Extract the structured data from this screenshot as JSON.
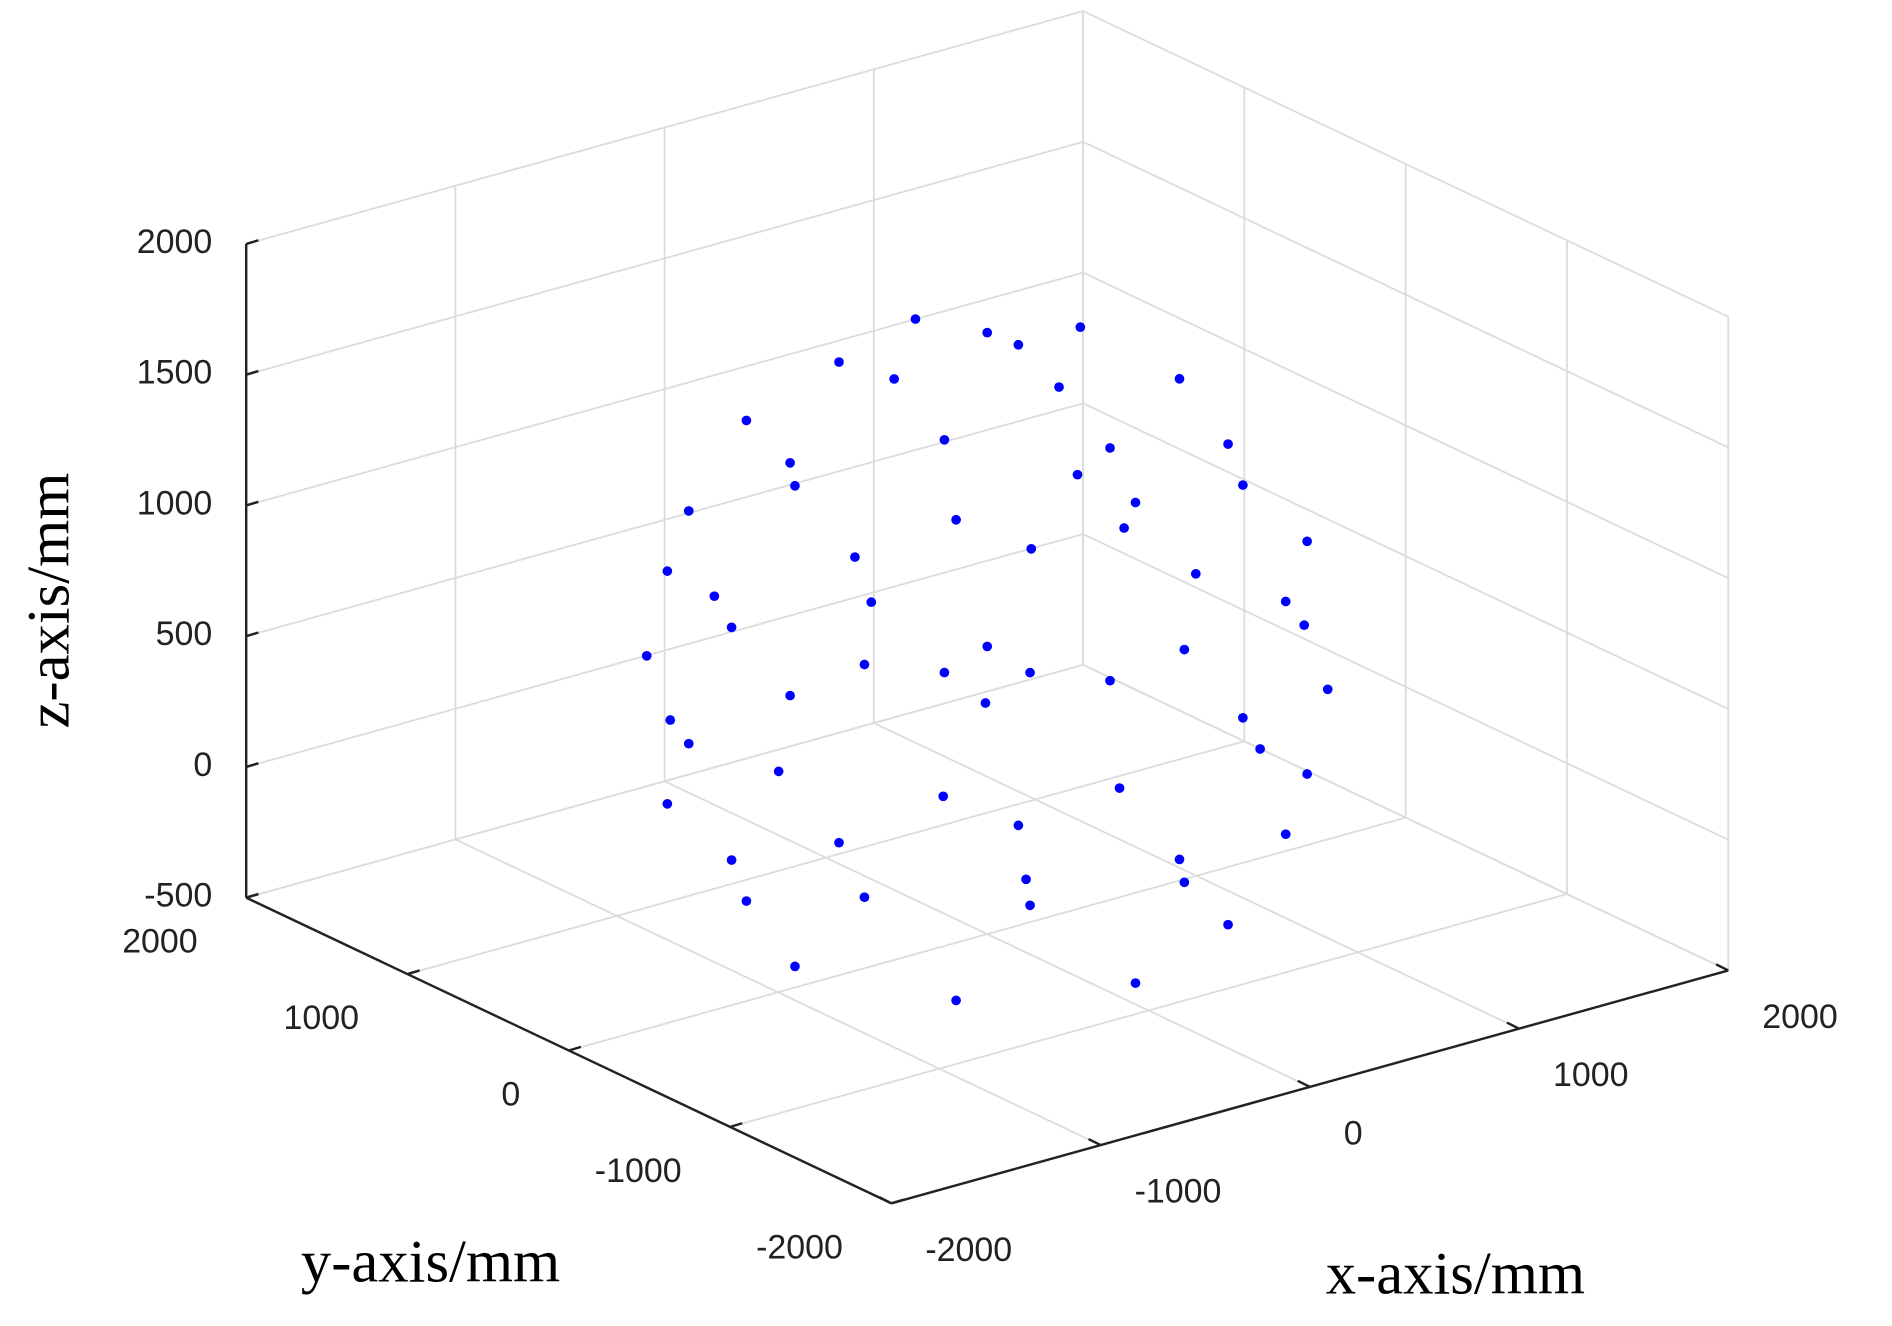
{
  "chart_data": {
    "type": "scatter3d",
    "color": "#0000ff",
    "grid": true,
    "xlabel": "x-axis/mm",
    "ylabel": "y-axis/mm",
    "zlabel": "z-axis/mm",
    "xlim": [
      -2000,
      2000
    ],
    "ylim": [
      -2000,
      2000
    ],
    "zlim": [
      -500,
      2000
    ],
    "xticks": [
      -2000,
      -1000,
      0,
      1000,
      2000
    ],
    "yticks": [
      -2000,
      -1000,
      0,
      1000,
      2000
    ],
    "zticks": [
      -500,
      0,
      500,
      1000,
      1500,
      2000
    ],
    "x": [
      0,
      445,
      0,
      -445,
      0,
      919,
      650,
      0,
      -650,
      -919,
      -650,
      0,
      650,
      1222,
      1058,
      611,
      0,
      -611,
      -1058,
      -1222,
      -1058,
      -611,
      0,
      611,
      1058,
      1256,
      919,
      336,
      -336,
      -919,
      -1256,
      -1256,
      -919,
      -336,
      336,
      919,
      1256,
      1222,
      1058,
      611,
      0,
      -611,
      -1058,
      -1222,
      -1058,
      -611,
      0,
      611,
      1058,
      919,
      650,
      0,
      -650,
      -919,
      -650,
      0,
      650,
      200,
      -400,
      300,
      -200,
      500,
      0
    ],
    "y": [
      0,
      0,
      445,
      0,
      -445,
      0,
      650,
      919,
      650,
      0,
      -650,
      -919,
      -650,
      0,
      611,
      1058,
      1222,
      1058,
      611,
      0,
      -611,
      -1058,
      -1222,
      -1058,
      -611,
      336,
      919,
      1256,
      1256,
      919,
      336,
      -336,
      -919,
      -1256,
      -1256,
      -919,
      -336,
      0,
      611,
      1058,
      1222,
      1058,
      611,
      0,
      -611,
      -1058,
      -1222,
      -1058,
      -611,
      0,
      650,
      919,
      650,
      0,
      -650,
      -919,
      -650,
      -300,
      200,
      400,
      -500,
      -200,
      0
    ],
    "z": [
      1800,
      1722,
      1722,
      1722,
      1722,
      1419,
      1419,
      1419,
      1419,
      1419,
      1419,
      1419,
      1419,
      945,
      945,
      945,
      945,
      945,
      945,
      945,
      945,
      945,
      945,
      945,
      945,
      500,
      500,
      500,
      500,
      500,
      500,
      500,
      500,
      500,
      500,
      500,
      500,
      55,
      55,
      55,
      55,
      55,
      55,
      55,
      55,
      55,
      55,
      55,
      55,
      -419,
      -419,
      -419,
      -419,
      -419,
      -419,
      -419,
      -419,
      1300,
      800,
      200,
      -100,
      1000,
      600
    ]
  }
}
